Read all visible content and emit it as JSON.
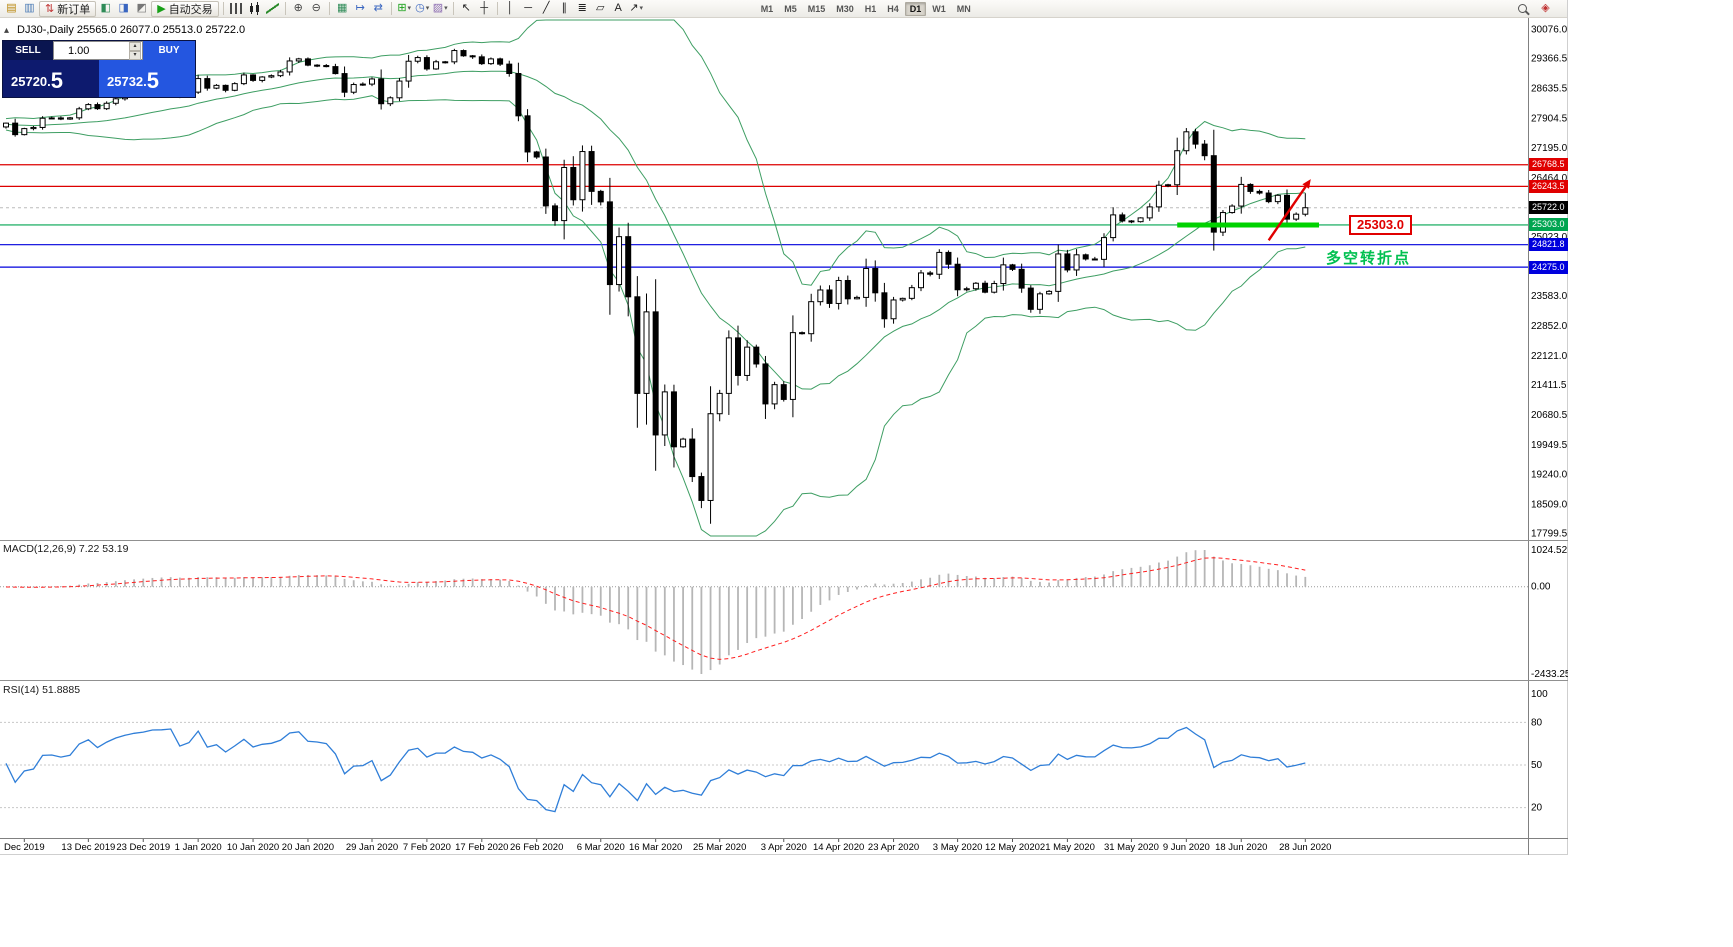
{
  "toolbar": {
    "groups": [
      {
        "sep": false,
        "items": [
          {
            "name": "new-chart-icon",
            "glyph": "▤",
            "color": "#b8860b"
          },
          {
            "name": "profiles-icon",
            "glyph": "▥",
            "color": "#4a7ab5"
          }
        ]
      },
      {
        "sep": false,
        "items": [
          {
            "name": "new-order-button",
            "type": "button",
            "label": "新订单",
            "glyph": "⇅",
            "color": "#c03030"
          }
        ]
      },
      {
        "sep": false,
        "items": [
          {
            "name": "market-watch-icon",
            "glyph": "◧",
            "color": "#2e8b57"
          },
          {
            "name": "data-window-icon",
            "glyph": "◨",
            "color": "#3a66c0"
          },
          {
            "name": "terminal-icon",
            "glyph": "◩",
            "color": "#777777"
          }
        ]
      },
      {
        "sep": false,
        "items": [
          {
            "name": "auto-trading-button",
            "type": "button",
            "label": "自动交易",
            "glyph": "▶",
            "color": "#18a018"
          }
        ]
      },
      {
        "sep": true,
        "items": [
          {
            "name": "bar-chart-icon",
            "css": "ic-bars"
          },
          {
            "name": "candlestick-chart-icon",
            "css": "ic-candles"
          },
          {
            "name": "line-chart-icon",
            "css": "ic-line"
          }
        ]
      },
      {
        "sep": true,
        "items": [
          {
            "name": "zoom-in-icon",
            "glyph": "⊕",
            "color": "#444444"
          },
          {
            "name": "zoom-out-icon",
            "glyph": "⊖",
            "color": "#444444"
          }
        ]
      },
      {
        "sep": true,
        "items": [
          {
            "name": "tile-windows-icon",
            "glyph": "▦",
            "color": "#2e8b57"
          },
          {
            "name": "auto-scroll-icon",
            "glyph": "↦",
            "color": "#3a66c0"
          },
          {
            "name": "chart-shift-icon",
            "glyph": "⇄",
            "color": "#3a66c0"
          }
        ]
      },
      {
        "sep": true,
        "items": [
          {
            "name": "indicators-icon",
            "glyph": "⊞",
            "color": "#18a018",
            "dropdown": true
          },
          {
            "name": "periods-icon",
            "glyph": "◷",
            "color": "#3a66c0",
            "dropdown": true
          },
          {
            "name": "templates-icon",
            "glyph": "▨",
            "color": "#8a6ab0",
            "dropdown": true
          }
        ]
      },
      {
        "sep": true,
        "items": [
          {
            "name": "cursor-icon",
            "glyph": "↖",
            "color": "#222222"
          },
          {
            "name": "crosshair-icon",
            "glyph": "┼",
            "color": "#222222"
          }
        ]
      },
      {
        "sep": true,
        "items": [
          {
            "name": "vertical-line-icon",
            "glyph": "│",
            "color": "#222222"
          },
          {
            "name": "horizontal-line-icon",
            "glyph": "─",
            "color": "#222222"
          },
          {
            "name": "trendline-icon",
            "glyph": "╱",
            "color": "#222222"
          },
          {
            "name": "channel-icon",
            "glyph": "∥",
            "color": "#222222"
          },
          {
            "name": "fibonacci-icon",
            "glyph": "≣",
            "color": "#222222"
          },
          {
            "name": "shapes-icon",
            "glyph": "▱",
            "color": "#222222"
          },
          {
            "name": "text-icon",
            "glyph": "A",
            "color": "#222222"
          },
          {
            "name": "arrows-icon",
            "glyph": "↗",
            "color": "#222222",
            "dropdown": true
          }
        ]
      }
    ],
    "timeframes": [
      "M1",
      "M5",
      "M15",
      "M30",
      "H1",
      "H4",
      "D1",
      "W1",
      "MN"
    ],
    "active_timeframe": "D1",
    "right_items": [
      {
        "name": "search-symbol-icon",
        "css": "ic-magnifier"
      },
      {
        "name": "quotes-icon",
        "glyph": "◈",
        "color": "#c03030"
      }
    ]
  },
  "chart": {
    "toggle_icon": "▴",
    "title_line": "DJ30-,Daily 25565.0 26077.0 25513.0 25722.0",
    "trade_panel": {
      "sell_label": "SELL",
      "buy_label": "BUY",
      "volume": "1.00",
      "sell_price": "25720.5",
      "buy_price": "25732.5"
    },
    "price_axis_boxes": [
      {
        "text": "26768.5",
        "bg": "#e00000"
      },
      {
        "text": "26243.5",
        "bg": "#e00000"
      },
      {
        "text": "25722.0",
        "bg": "#000000"
      },
      {
        "text": "25303.0",
        "bg": "#00a550"
      },
      {
        "text": "24821.8",
        "bg": "#0000dd"
      },
      {
        "text": "24275.0",
        "bg": "#0000dd"
      }
    ],
    "annotations": {
      "level_label": {
        "text": "25303.0",
        "color": "#e00000"
      },
      "note": {
        "text": "多空转折点",
        "color": "#00c050"
      },
      "arrow": {
        "color": "#e00000",
        "from_bar": 138,
        "from_price": 24930,
        "to_bar": 142.6,
        "to_price": 26420
      }
    }
  },
  "chart_data": {
    "type": "candlestick",
    "symbol": "DJ30-",
    "timeframe": "Daily",
    "last_bar_ohlc": {
      "open": 25565.0,
      "high": 26077.0,
      "low": 25513.0,
      "close": 25722.0
    },
    "closes": [
      27783,
      27503,
      27650,
      27678,
      27902,
      27910,
      27882,
      27912,
      28132,
      28235,
      28135,
      28267,
      28376,
      28455,
      28515,
      28551,
      28616,
      28621,
      28645,
      28462,
      28538,
      28868,
      28635,
      28703,
      28583,
      28745,
      28957,
      28824,
      28907,
      28939,
      29030,
      29298,
      29348,
      29196,
      29186,
      29160,
      28990,
      28536,
      28723,
      28734,
      28859,
      28256,
      28400,
      28808,
      29291,
      29380,
      29103,
      29277,
      29276,
      29551,
      29423,
      29398,
      29232,
      29348,
      29220,
      28992,
      27961,
      27081,
      26958,
      25767,
      25409,
      26703,
      25917,
      27091,
      26121,
      25865,
      23851,
      25018,
      23553,
      21200,
      23186,
      20188,
      21237,
      19899,
      20087,
      19174,
      18592,
      20705,
      21200,
      22552,
      21637,
      22327,
      21917,
      20944,
      21413,
      21053,
      22680,
      22654,
      23434,
      23719,
      23391,
      23950,
      23504,
      23538,
      24242,
      23650,
      23018,
      23476,
      23515,
      23775,
      24134,
      24102,
      24634,
      24346,
      23724,
      23749,
      23883,
      23665,
      23876,
      24331,
      24222,
      23765,
      23248,
      23625,
      23685,
      24597,
      24207,
      24576,
      24474,
      24465,
      24995,
      25548,
      25401,
      25383,
      25475,
      25743,
      26270,
      26282,
      27111,
      27572,
      27272,
      26990,
      25128,
      25605,
      25763,
      26290,
      26120,
      26080,
      25871,
      26025,
      25445,
      25565,
      25722
    ],
    "price_axis_ticks": [
      30076.0,
      29366.5,
      28635.5,
      27904.5,
      27195.0,
      26464.0,
      25023.0,
      23583.0,
      22852.0,
      22121.0,
      21411.5,
      20680.5,
      19949.5,
      19240.0,
      18509.0,
      17799.5
    ],
    "time_axis_labels": [
      {
        "text": "Dec 2019",
        "bar": 2
      },
      {
        "text": "13 Dec 2019",
        "bar": 9
      },
      {
        "text": "23 Dec 2019",
        "bar": 15
      },
      {
        "text": "1 Jan 2020",
        "bar": 21
      },
      {
        "text": "10 Jan 2020",
        "bar": 27
      },
      {
        "text": "20 Jan 2020",
        "bar": 33
      },
      {
        "text": "29 Jan 2020",
        "bar": 40
      },
      {
        "text": "7 Feb 2020",
        "bar": 46
      },
      {
        "text": "17 Feb 2020",
        "bar": 52
      },
      {
        "text": "26 Feb 2020",
        "bar": 58
      },
      {
        "text": "6 Mar 2020",
        "bar": 65
      },
      {
        "text": "16 Mar 2020",
        "bar": 71
      },
      {
        "text": "25 Mar 2020",
        "bar": 78
      },
      {
        "text": "3 Apr 2020",
        "bar": 85
      },
      {
        "text": "14 Apr 2020",
        "bar": 91
      },
      {
        "text": "23 Apr 2020",
        "bar": 97
      },
      {
        "text": "3 May 2020",
        "bar": 104
      },
      {
        "text": "12 May 2020",
        "bar": 110
      },
      {
        "text": "21 May 2020",
        "bar": 116
      },
      {
        "text": "31 May 2020",
        "bar": 123
      },
      {
        "text": "9 Jun 2020",
        "bar": 129
      },
      {
        "text": "18 Jun 2020",
        "bar": 135
      },
      {
        "text": "28 Jun 2020",
        "bar": 142
      }
    ],
    "horizontal_levels": [
      {
        "price": 26768.5,
        "color": "#dd0000"
      },
      {
        "price": 26243.5,
        "color": "#dd0000"
      },
      {
        "price": 25303.0,
        "color": "#00a550"
      },
      {
        "price": 24821.8,
        "color": "#0000dd"
      },
      {
        "price": 24275.0,
        "color": "#0000dd"
      }
    ],
    "current_price": 25722.0,
    "support_segment": {
      "price": 25303.0,
      "from_bar": 128,
      "to_bar": 143.5,
      "color": "#00d200",
      "width": 5
    },
    "indicators": {
      "bollinger_bands": {
        "period": 20,
        "deviation": 2,
        "color": "#3e9e63"
      },
      "macd": {
        "params": [
          12,
          26,
          9
        ],
        "main_value": 7.22,
        "signal_value": 53.19,
        "histogram_color": "#b6b6b6",
        "signal_color": "#ff2020",
        "scale_max": 1024.52,
        "scale_min": -2433.25
      },
      "rsi": {
        "period": 14,
        "value": 51.8885,
        "color": "#2f7ed8",
        "levels": [
          80,
          50,
          20
        ]
      }
    }
  },
  "macd_panel": {
    "label": "MACD(12,26,9) 7.22 53.19",
    "scale_top": "1024.52",
    "scale_zero": "0.00",
    "scale_bottom": "-2433.25"
  },
  "rsi_panel": {
    "label": "RSI(14) 51.8885",
    "scale_labels": [
      "100",
      "80",
      "50",
      "20"
    ]
  }
}
